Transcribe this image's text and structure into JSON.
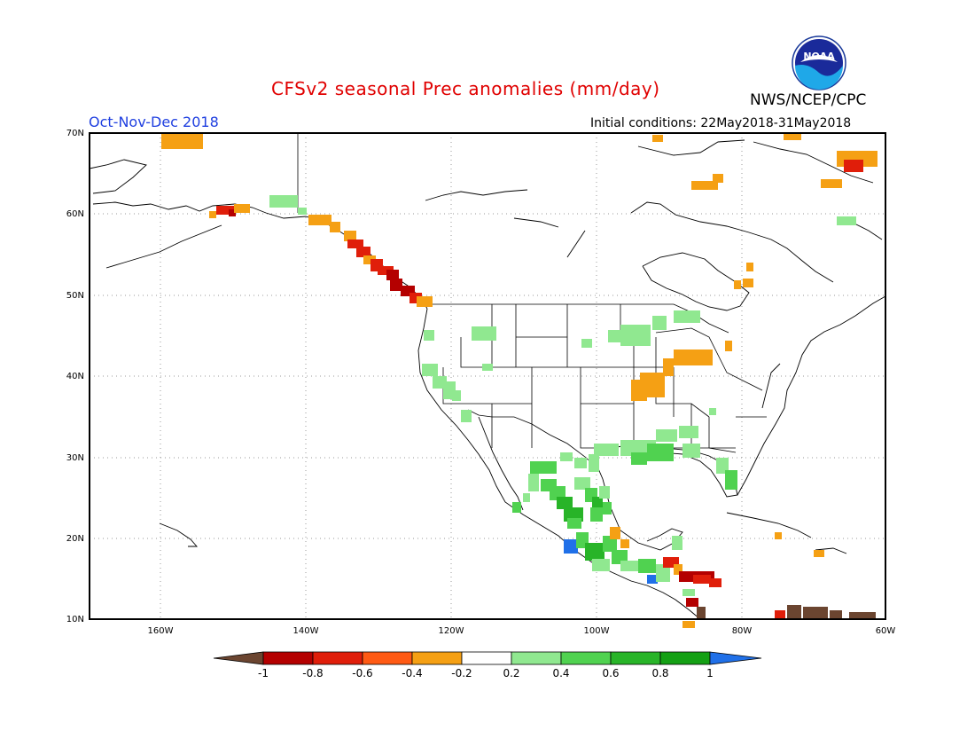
{
  "header": {
    "title": "CFSv2 seasonal Prec anomalies (mm/day)",
    "agency": "NWS/NCEP/CPC",
    "season": "Oct-Nov-Dec 2018",
    "initial_conditions": "Initial conditions: 22May2018-31May2018",
    "logo_text": "NOAA"
  },
  "axes": {
    "lon_labels": [
      "160W",
      "140W",
      "120W",
      "100W",
      "80W",
      "60W"
    ],
    "lat_labels": [
      "70N",
      "60N",
      "50N",
      "40N",
      "30N",
      "20N",
      "10N"
    ]
  },
  "colorbar": {
    "tick_labels": [
      "-1",
      "-0.8",
      "-0.6",
      "-0.4",
      "-0.2",
      "0.2",
      "0.4",
      "0.6",
      "0.8",
      "1"
    ],
    "colors": [
      "#6b4530",
      "#b40000",
      "#e01e0a",
      "#ff5a14",
      "#f5a014",
      "#ffffff",
      "#90e890",
      "#50d250",
      "#28b428",
      "#14a014",
      "#2070e8"
    ]
  },
  "map_data": {
    "grid_color": "#9a9a9a",
    "anomaly_colors": {
      "dry_strong": "#b40000",
      "dry": "#e01e0a",
      "dry_light": "#f5a014",
      "wet_light": "#90e890",
      "wet": "#50d250",
      "wet_strong": "#28b428",
      "wet_max": "#2070e8",
      "extreme_dry": "#6b4530"
    }
  }
}
